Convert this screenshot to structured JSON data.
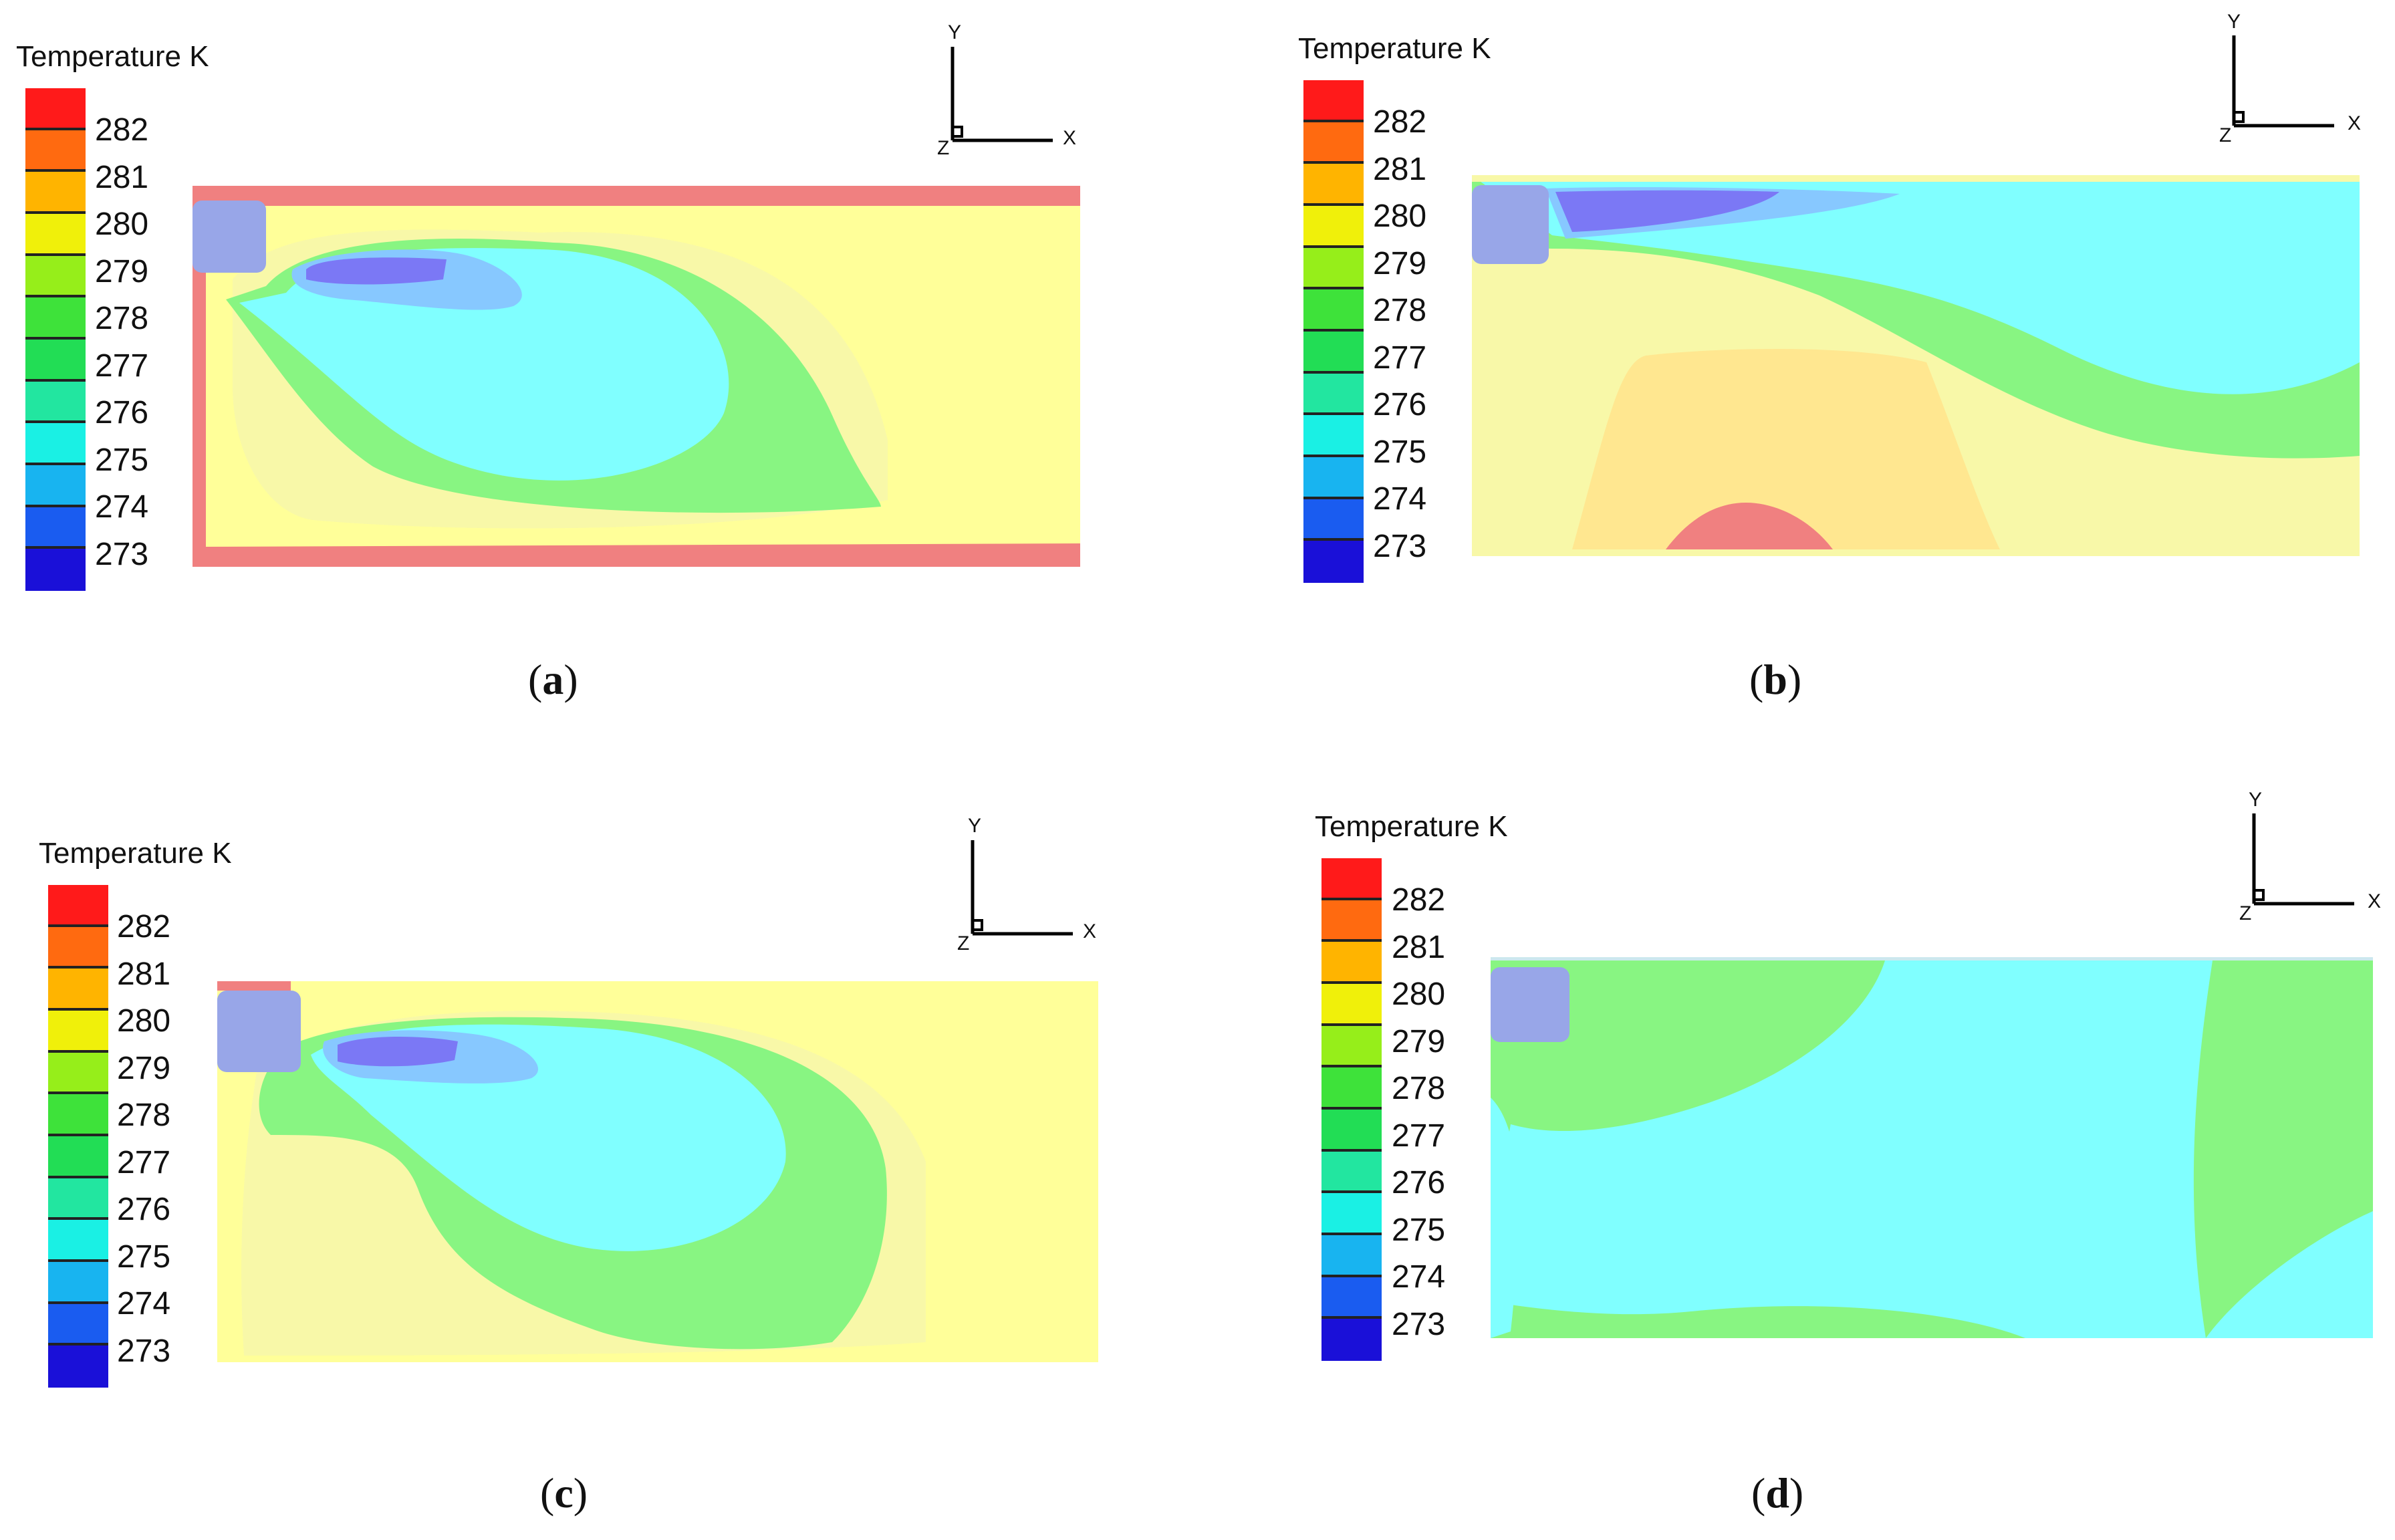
{
  "legend": {
    "title": "Temperature K",
    "ticks": [
      "282",
      "281",
      "280",
      "279",
      "278",
      "277",
      "276",
      "275",
      "274",
      "273"
    ],
    "colors": [
      "#ff1a1a",
      "#ff6a10",
      "#ffb400",
      "#f0f00a",
      "#96ee1a",
      "#3ee23a",
      "#22dd55",
      "#22e6a0",
      "#1af0e4",
      "#18b4f0",
      "#1a5cf0",
      "#1a10d8"
    ]
  },
  "axes": {
    "x": "X",
    "y": "Y",
    "z": "Z"
  },
  "panels": [
    {
      "id": "a",
      "caption_open": "(",
      "caption_letter": "a",
      "caption_close": ")"
    },
    {
      "id": "b",
      "caption_open": "(",
      "caption_letter": "b",
      "caption_close": ")"
    },
    {
      "id": "c",
      "caption_open": "(",
      "caption_letter": "c",
      "caption_close": ")"
    },
    {
      "id": "d",
      "caption_open": "(",
      "caption_letter": "d",
      "caption_close": ")"
    }
  ],
  "field_colors": {
    "warm": "#f08080",
    "yellow": "#ffff99",
    "light_yellow": "#f8f8a8",
    "orange_yellow": "#ffe790",
    "green": "#88f582",
    "cyan": "#80ffff",
    "light_blue": "#87c8ff",
    "violet": "#7b78f5",
    "inlet": "#98a6e8"
  }
}
